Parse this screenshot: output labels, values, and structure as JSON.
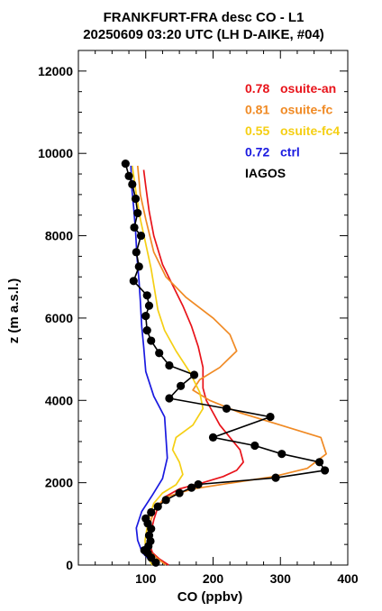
{
  "chart_data": {
    "type": "line",
    "title_line1": "FRANKFURT-FRA desc CO - L1",
    "title_line2": "20250609 03:20 UTC (LH D-AIKE, #04)",
    "xlabel": "CO (ppbv)",
    "ylabel": "z (m a.s.l.)",
    "xlim": [
      0,
      400
    ],
    "ylim": [
      0,
      12500
    ],
    "x_ticks": [
      100,
      200,
      300,
      400
    ],
    "y_ticks": [
      0,
      2000,
      4000,
      6000,
      8000,
      10000,
      12000
    ],
    "legend_position": "upper-right",
    "series": [
      {
        "name": "osuite-an",
        "score": "0.78",
        "color": "#e8131a",
        "points": [
          [
            134,
            0
          ],
          [
            120,
            150
          ],
          [
            110,
            300
          ],
          [
            106,
            500
          ],
          [
            108,
            800
          ],
          [
            112,
            1100
          ],
          [
            118,
            1400
          ],
          [
            128,
            1650
          ],
          [
            150,
            1850
          ],
          [
            185,
            2000
          ],
          [
            215,
            2150
          ],
          [
            235,
            2300
          ],
          [
            245,
            2500
          ],
          [
            240,
            2800
          ],
          [
            225,
            3100
          ],
          [
            210,
            3400
          ],
          [
            200,
            3700
          ],
          [
            190,
            4000
          ],
          [
            185,
            4300
          ],
          [
            185,
            4800
          ],
          [
            178,
            5300
          ],
          [
            168,
            5800
          ],
          [
            155,
            6300
          ],
          [
            140,
            6800
          ],
          [
            125,
            7300
          ],
          [
            112,
            8000
          ],
          [
            105,
            8600
          ],
          [
            100,
            9200
          ],
          [
            97,
            9600
          ]
        ]
      },
      {
        "name": "osuite-fc",
        "score": "0.81",
        "color": "#f08a24",
        "points": [
          [
            130,
            0
          ],
          [
            118,
            150
          ],
          [
            108,
            300
          ],
          [
            103,
            500
          ],
          [
            105,
            800
          ],
          [
            108,
            1100
          ],
          [
            115,
            1400
          ],
          [
            130,
            1650
          ],
          [
            170,
            1850
          ],
          [
            230,
            2000
          ],
          [
            290,
            2150
          ],
          [
            340,
            2350
          ],
          [
            368,
            2700
          ],
          [
            360,
            3100
          ],
          [
            300,
            3400
          ],
          [
            240,
            3700
          ],
          [
            195,
            4000
          ],
          [
            170,
            4250
          ],
          [
            180,
            4500
          ],
          [
            210,
            4800
          ],
          [
            235,
            5200
          ],
          [
            225,
            5600
          ],
          [
            200,
            6000
          ],
          [
            160,
            6500
          ],
          [
            130,
            7000
          ],
          [
            112,
            7600
          ],
          [
            100,
            8400
          ],
          [
            92,
            9000
          ],
          [
            88,
            9700
          ]
        ]
      },
      {
        "name": "osuite-fc4",
        "score": "0.55",
        "color": "#f5cf14",
        "points": [
          [
            110,
            0
          ],
          [
            104,
            150
          ],
          [
            100,
            300
          ],
          [
            99,
            600
          ],
          [
            102,
            900
          ],
          [
            106,
            1200
          ],
          [
            112,
            1500
          ],
          [
            125,
            1750
          ],
          [
            145,
            1950
          ],
          [
            155,
            2200
          ],
          [
            150,
            2500
          ],
          [
            140,
            2800
          ],
          [
            145,
            3100
          ],
          [
            170,
            3400
          ],
          [
            185,
            3800
          ],
          [
            180,
            4200
          ],
          [
            165,
            4700
          ],
          [
            145,
            5200
          ],
          [
            128,
            5700
          ],
          [
            118,
            6200
          ],
          [
            113,
            6700
          ],
          [
            108,
            7200
          ],
          [
            100,
            7800
          ],
          [
            92,
            8400
          ],
          [
            86,
            9000
          ],
          [
            80,
            9700
          ]
        ]
      },
      {
        "name": "ctrl",
        "score": "0.72",
        "color": "#1a1ae0",
        "points": [
          [
            118,
            0
          ],
          [
            106,
            120
          ],
          [
            95,
            300
          ],
          [
            88,
            600
          ],
          [
            86,
            900
          ],
          [
            94,
            1300
          ],
          [
            110,
            1700
          ],
          [
            125,
            2100
          ],
          [
            132,
            2600
          ],
          [
            130,
            3100
          ],
          [
            128,
            3600
          ],
          [
            112,
            4100
          ],
          [
            100,
            4700
          ],
          [
            97,
            5300
          ],
          [
            94,
            5800
          ],
          [
            92,
            6400
          ],
          [
            90,
            6900
          ],
          [
            87,
            7500
          ],
          [
            85,
            8100
          ],
          [
            82,
            8700
          ],
          [
            79,
            9200
          ],
          [
            78,
            9700
          ]
        ]
      },
      {
        "name": "IAGOS",
        "score": "",
        "color": "#000000",
        "points": [
          [
            115,
            60
          ],
          [
            108,
            180
          ],
          [
            103,
            290
          ],
          [
            98,
            360
          ],
          [
            104,
            460
          ],
          [
            107,
            580
          ],
          [
            105,
            720
          ],
          [
            108,
            880
          ],
          [
            103,
            1010
          ],
          [
            100,
            1130
          ],
          [
            108,
            1280
          ],
          [
            118,
            1420
          ],
          [
            130,
            1580
          ],
          [
            150,
            1750
          ],
          [
            168,
            1880
          ],
          [
            178,
            1960
          ],
          [
            293,
            2120
          ],
          [
            366,
            2300
          ],
          [
            358,
            2500
          ],
          [
            302,
            2700
          ],
          [
            262,
            2900
          ],
          [
            200,
            3100
          ],
          [
            285,
            3600
          ],
          [
            220,
            3800
          ],
          [
            135,
            4050
          ],
          [
            152,
            4350
          ],
          [
            172,
            4620
          ],
          [
            135,
            4850
          ],
          [
            120,
            5150
          ],
          [
            108,
            5450
          ],
          [
            102,
            5700
          ],
          [
            100,
            6050
          ],
          [
            105,
            6300
          ],
          [
            102,
            6550
          ],
          [
            82,
            6900
          ],
          [
            90,
            7250
          ],
          [
            86,
            7600
          ],
          [
            93,
            8000
          ],
          [
            83,
            8200
          ],
          [
            88,
            8550
          ],
          [
            85,
            8900
          ],
          [
            80,
            9250
          ],
          [
            75,
            9450
          ],
          [
            70,
            9750
          ]
        ]
      }
    ]
  }
}
